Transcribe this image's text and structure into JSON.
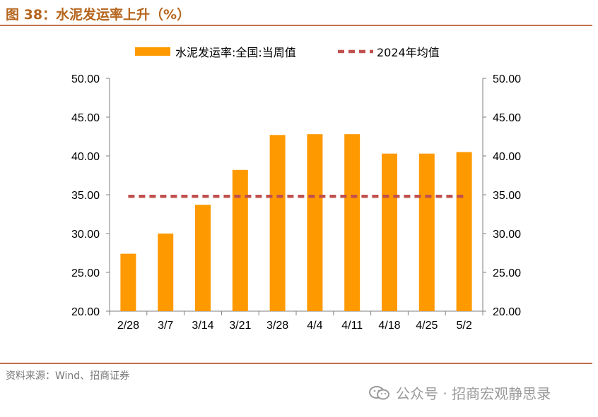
{
  "header": {
    "title": "图 38：水泥发运率上升（%）"
  },
  "footer": {
    "source": "资料来源：Wind、招商证券",
    "watermark": "公众号 · 招商宏观静思录"
  },
  "colors": {
    "bar": "#FF9900",
    "avg_line": "#C0504D",
    "accent_rule": "#C0704A"
  },
  "chart_data": {
    "type": "bar",
    "categories": [
      "2/28",
      "3/7",
      "3/14",
      "3/21",
      "3/28",
      "4/4",
      "4/11",
      "4/18",
      "4/25",
      "5/2"
    ],
    "series": [
      {
        "name": "水泥发运率:全国:当周值",
        "type": "bar",
        "values": [
          27.4,
          30.0,
          33.7,
          38.2,
          42.7,
          42.8,
          42.8,
          40.3,
          40.3,
          40.5
        ]
      },
      {
        "name": "2024年均值",
        "type": "line-dashed",
        "values": [
          34.8,
          34.8,
          34.8,
          34.8,
          34.8,
          34.8,
          34.8,
          34.8,
          34.8,
          34.8
        ]
      }
    ],
    "ylim": [
      20,
      50
    ],
    "y_ticks": [
      "20.00",
      "25.00",
      "30.00",
      "35.00",
      "40.00",
      "45.00",
      "50.00"
    ],
    "y2_ticks": [
      "20.00",
      "25.00",
      "30.00",
      "35.00",
      "40.00",
      "45.00",
      "50.00"
    ],
    "legend_position": "top",
    "grid": false
  }
}
